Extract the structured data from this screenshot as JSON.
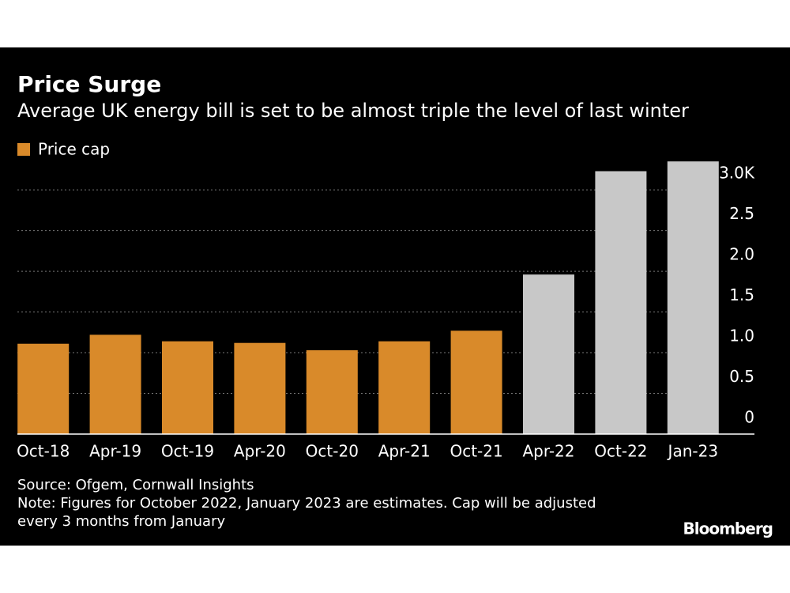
{
  "chart_data": {
    "type": "bar",
    "title": "Price Surge",
    "subtitle": "Average UK energy bill is set to be almost triple the level of last winter",
    "categories": [
      "Oct-18",
      "Apr-19",
      "Oct-19",
      "Apr-20",
      "Oct-20",
      "Apr-21",
      "Oct-21",
      "Apr-22",
      "Oct-22",
      "Jan-23"
    ],
    "series": [
      {
        "name": "Price cap",
        "color": "#d98a2a",
        "colors": [
          "#d98a2a",
          "#d98a2a",
          "#d98a2a",
          "#d98a2a",
          "#d98a2a",
          "#d98a2a",
          "#d98a2a",
          "#c8c8c8",
          "#c8c8c8",
          "#c8c8c8"
        ],
        "values": [
          1.11,
          1.22,
          1.14,
          1.12,
          1.03,
          1.14,
          1.27,
          1.96,
          3.23,
          3.35
        ]
      }
    ],
    "ylim": [
      0,
      3.4
    ],
    "yticks": [
      0,
      0.5,
      {
        "value": 1,
        "label": "1.0"
      },
      1.5,
      {
        "value": 2,
        "label": "2.0"
      },
      2.5,
      {
        "value": 3,
        "label": "£3.0K"
      }
    ],
    "grid": true,
    "source": "Source: Ofgem, Cornwall Insights",
    "note": [
      "Note: Figures for October 2022, January 2023 are estimates. Cap will be adjusted",
      "every 3 months from January"
    ],
    "brand": "Bloomberg"
  }
}
